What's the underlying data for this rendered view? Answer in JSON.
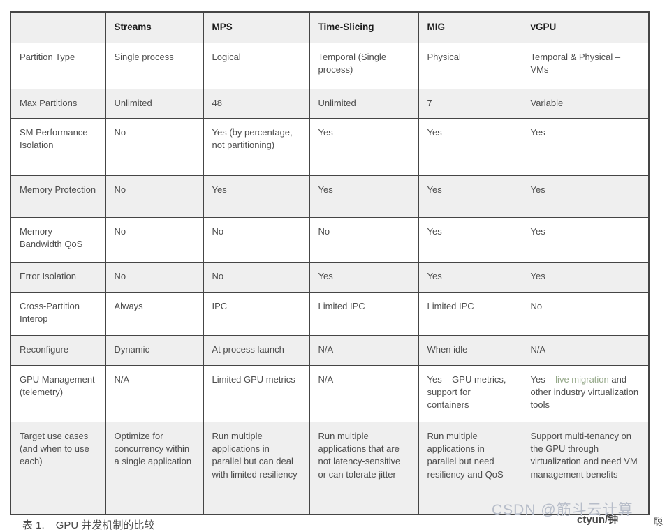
{
  "table": {
    "columns": [
      {
        "label": ""
      },
      {
        "label": "Streams"
      },
      {
        "label": "MPS"
      },
      {
        "label": "Time-Slicing"
      },
      {
        "label": "MIG"
      },
      {
        "label": "vGPU"
      }
    ],
    "rows": [
      {
        "label": "Partition Type",
        "cells": [
          "Single process",
          "Logical",
          "Temporal (Single process)",
          "Physical",
          "Temporal & Physical – VMs"
        ]
      },
      {
        "label": "Max Partitions",
        "cells": [
          "Unlimited",
          "48",
          "Unlimited",
          "7",
          "Variable"
        ]
      },
      {
        "label": "SM Performance Isolation",
        "cells": [
          "No",
          "Yes (by percentage, not partitioning)",
          "Yes",
          "Yes",
          "Yes"
        ]
      },
      {
        "label": "Memory Protection",
        "cells": [
          "No",
          "Yes",
          "Yes",
          "Yes",
          "Yes"
        ]
      },
      {
        "label": "Memory Bandwidth QoS",
        "cells": [
          "No",
          "No",
          "No",
          "Yes",
          "Yes"
        ]
      },
      {
        "label": "Error Isolation",
        "cells": [
          "No",
          "No",
          "Yes",
          "Yes",
          "Yes"
        ]
      },
      {
        "label": "Cross-Partition Interop",
        "cells": [
          "Always",
          "IPC",
          "Limited IPC",
          "Limited IPC",
          "No"
        ]
      },
      {
        "label": "Reconfigure",
        "cells": [
          "Dynamic",
          "At process launch",
          "N/A",
          "When idle",
          "N/A"
        ]
      },
      {
        "label": "GPU Management (telemetry)",
        "cells": [
          "N/A",
          "Limited GPU metrics",
          "N/A",
          "Yes – GPU metrics, support for containers",
          {
            "parts": [
              {
                "text": "Yes – "
              },
              {
                "text": "live migration",
                "link": true
              },
              {
                "text": " and other industry virtualization tools"
              }
            ]
          }
        ]
      },
      {
        "label": "Target use cases (and when to use each)",
        "cells": [
          "Optimize for concurrency within a single application",
          "Run multiple applications in parallel but can deal with limited resiliency",
          "Run multiple applications that are not latency-sensitive or can tolerate jitter",
          "Run multiple applications in parallel but need resiliency and QoS",
          "Support multi-tenancy on the GPU through virtualization and need VM management benefits"
        ]
      }
    ]
  },
  "caption": {
    "prefix": "表 1.",
    "text": "GPU 并发机制的比较"
  },
  "watermarks": {
    "csdn": "CSDN @筋斗云计算",
    "ctyun": "ctyun/钟",
    "suffix": "聪"
  },
  "colors": {
    "page_bg": "#ffffff",
    "border": "#454545",
    "header_bg": "#efefef",
    "alt_row_bg": "#efefef",
    "header_text": "#1c1c1c",
    "text": "#4d4d4d",
    "link": "#93a787",
    "watermark": "#b7bdc9",
    "caption_text": "#4a4a4a"
  }
}
